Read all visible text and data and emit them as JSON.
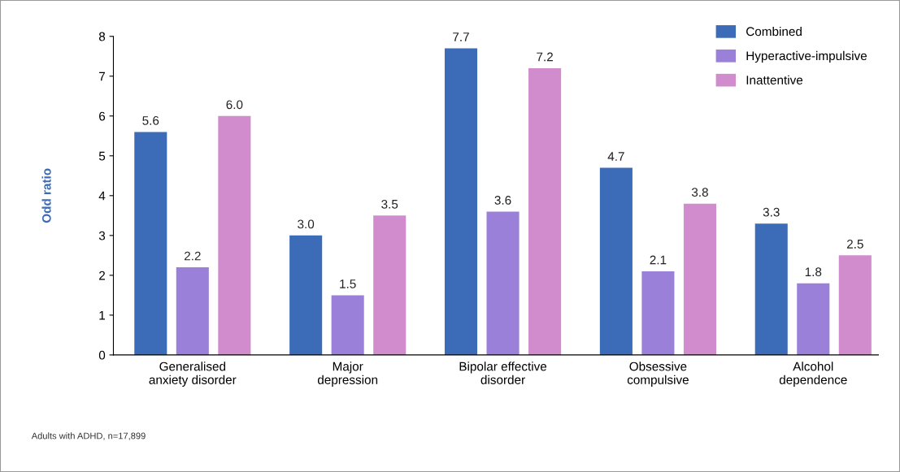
{
  "chart_data": {
    "type": "bar",
    "ylabel": "Odd ratio",
    "categories": [
      "Generalised\nanxiety disorder",
      "Major\ndepression",
      "Bipolar effective\ndisorder",
      "Obsessive\ncompulsive",
      "Alcohol\ndependence"
    ],
    "series": [
      {
        "name": "Combined",
        "color": "#3c6cb8",
        "values": [
          5.6,
          3.0,
          7.7,
          4.7,
          3.3
        ],
        "value_labels": [
          "5.6",
          "3.0",
          "7.7",
          "4.7",
          "3.3"
        ]
      },
      {
        "name": "Hyperactive-impulsive",
        "color": "#9a80d8",
        "values": [
          2.2,
          1.5,
          3.6,
          2.1,
          1.8
        ],
        "value_labels": [
          "2.2",
          "1.5",
          "3.6",
          "2.1",
          "1.8"
        ]
      },
      {
        "name": "Inattentive",
        "color": "#d08ccc",
        "values": [
          6.0,
          3.5,
          7.2,
          3.8,
          2.5
        ],
        "value_labels": [
          "6.0",
          "3.5",
          "7.2",
          "3.8",
          "2.5"
        ]
      }
    ],
    "ylim": [
      0,
      8
    ],
    "yticks": [
      0,
      1,
      2,
      3,
      4,
      5,
      6,
      7,
      8
    ],
    "legend": "top right",
    "grid": false,
    "annotations": [
      "Adults with ADHD, n=17,899"
    ]
  }
}
